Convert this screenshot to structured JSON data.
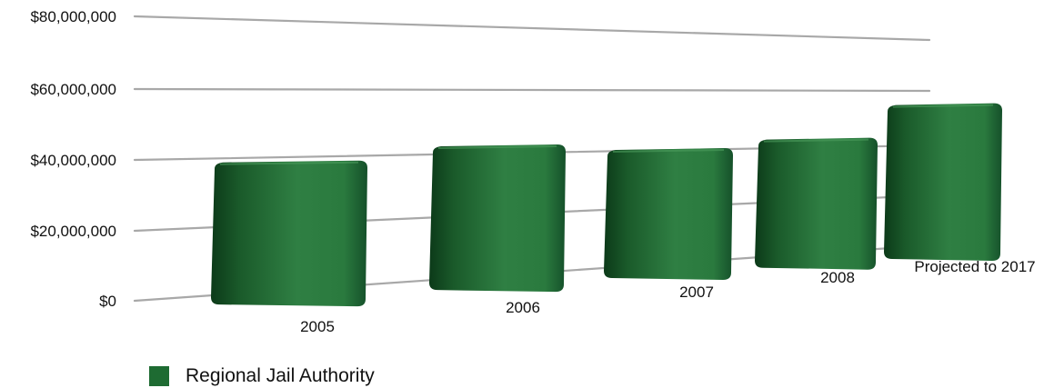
{
  "chart_data": {
    "type": "bar",
    "title": "",
    "xlabel": "",
    "ylabel": "",
    "categories": [
      "2005",
      "2006",
      "2007",
      "2008",
      "Projected to 2017"
    ],
    "series": [
      {
        "name": "Regional Jail Authority",
        "values": [
          42000000,
          46000000,
          44000000,
          47000000,
          60000000
        ]
      }
    ],
    "ylim": [
      0,
      80000000
    ],
    "y_ticks": [
      "$0",
      "$20,000,000",
      "$40,000,000",
      "$60,000,000",
      "$80,000,000"
    ],
    "grid": true,
    "legend": "bottom-left",
    "colors": {
      "bar": "#1e6b32",
      "bar_dark": "#0c3a19",
      "bar_light": "#3a8a4e",
      "grid": "#a8a8a8"
    }
  }
}
